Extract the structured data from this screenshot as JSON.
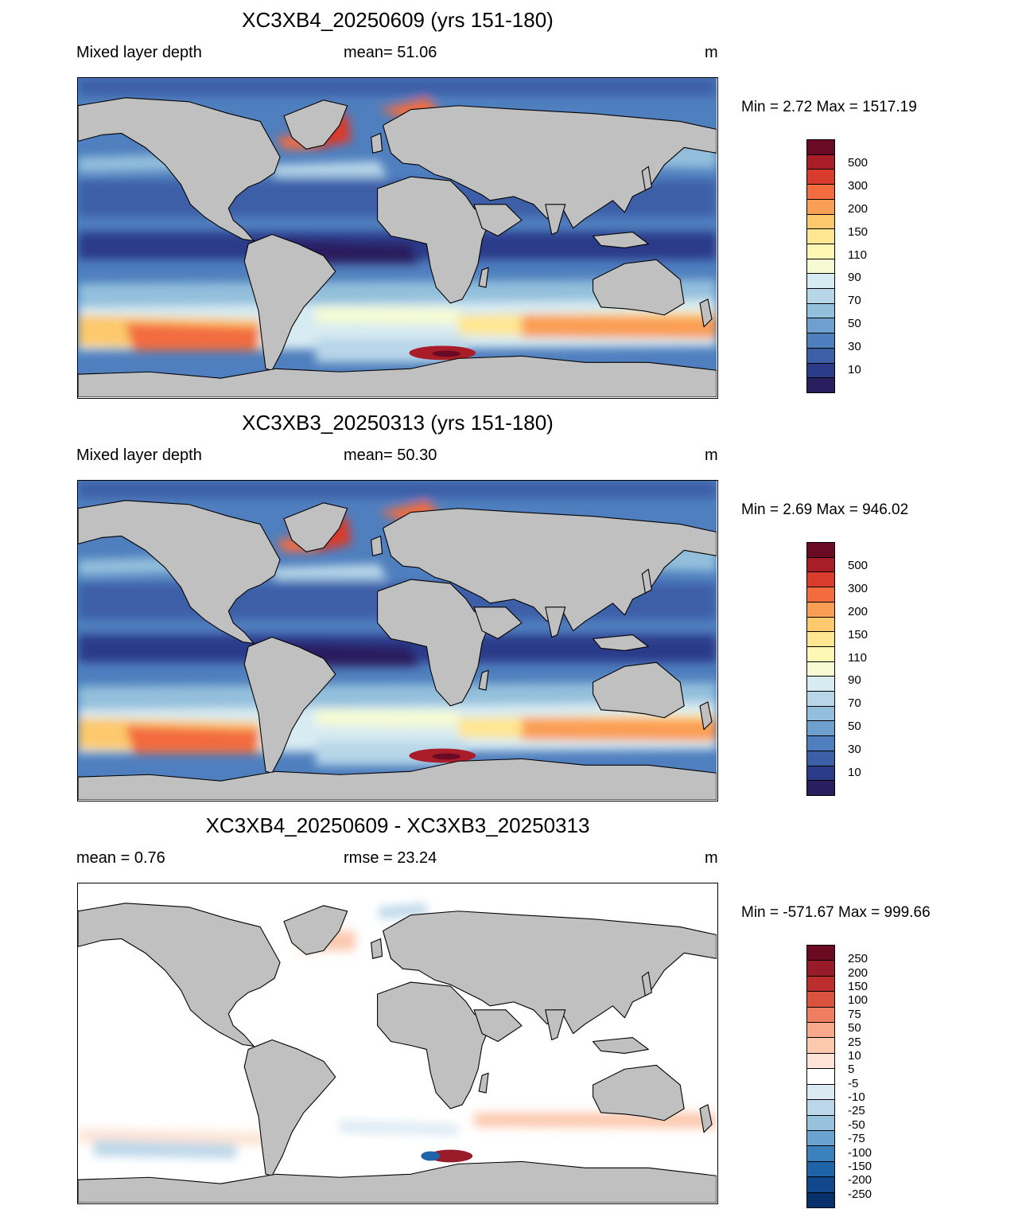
{
  "colors": {
    "land": "#c0c0c0",
    "coast": "#000000",
    "mld_scale": [
      "#2a1f5e",
      "#2b3b8a",
      "#3d5fa8",
      "#4f7fbe",
      "#6f9fce",
      "#93bfdc",
      "#b7d6e8",
      "#d7ebf2",
      "#f6fbd3",
      "#fff7b4",
      "#ffe690",
      "#fdc96c",
      "#fb9e55",
      "#f26c3f",
      "#d93b2c",
      "#a91d28",
      "#6b0a24"
    ],
    "diff_scale": [
      "#08306b",
      "#11478c",
      "#1f63a8",
      "#3a81be",
      "#6aa3cf",
      "#98c1de",
      "#bcd7ea",
      "#dbe9f3",
      "#ffffff",
      "#fde4d6",
      "#fcc9af",
      "#f9a98b",
      "#ee7d62",
      "#d9533e",
      "#bc2e2e",
      "#981b2a",
      "#6b0a20"
    ]
  },
  "panels": [
    {
      "title": "XC3XB4_20250609 (yrs 151-180)",
      "left_label": "Mixed layer depth",
      "center_label": "mean=  51.06",
      "unit": "m",
      "minmax": "Min =    2.72 Max = 1517.19",
      "colorbar": {
        "palette": "mld_scale",
        "labels": [
          "500",
          "300",
          "200",
          "150",
          "110",
          "90",
          "70",
          "50",
          "30",
          "10"
        ]
      }
    },
    {
      "title": "XC3XB3_20250313 (yrs 151-180)",
      "left_label": "Mixed layer depth",
      "center_label": "mean=  50.30",
      "unit": "m",
      "minmax": "Min =    2.69 Max = 946.02",
      "colorbar": {
        "palette": "mld_scale",
        "labels": [
          "500",
          "300",
          "200",
          "150",
          "110",
          "90",
          "70",
          "50",
          "30",
          "10"
        ]
      }
    },
    {
      "title": "XC3XB4_20250609 - XC3XB3_20250313",
      "left_label": "mean =   0.76",
      "center_label": "rmse =  23.24",
      "unit": "m",
      "minmax": "Min = -571.67 Max = 999.66",
      "colorbar": {
        "palette": "diff_scale",
        "labels": [
          "250",
          "200",
          "150",
          "100",
          "75",
          "50",
          "25",
          "10",
          "5",
          "-5",
          "-10",
          "-25",
          "-50",
          "-75",
          "-100",
          "-150",
          "-200",
          "-250"
        ]
      }
    }
  ]
}
